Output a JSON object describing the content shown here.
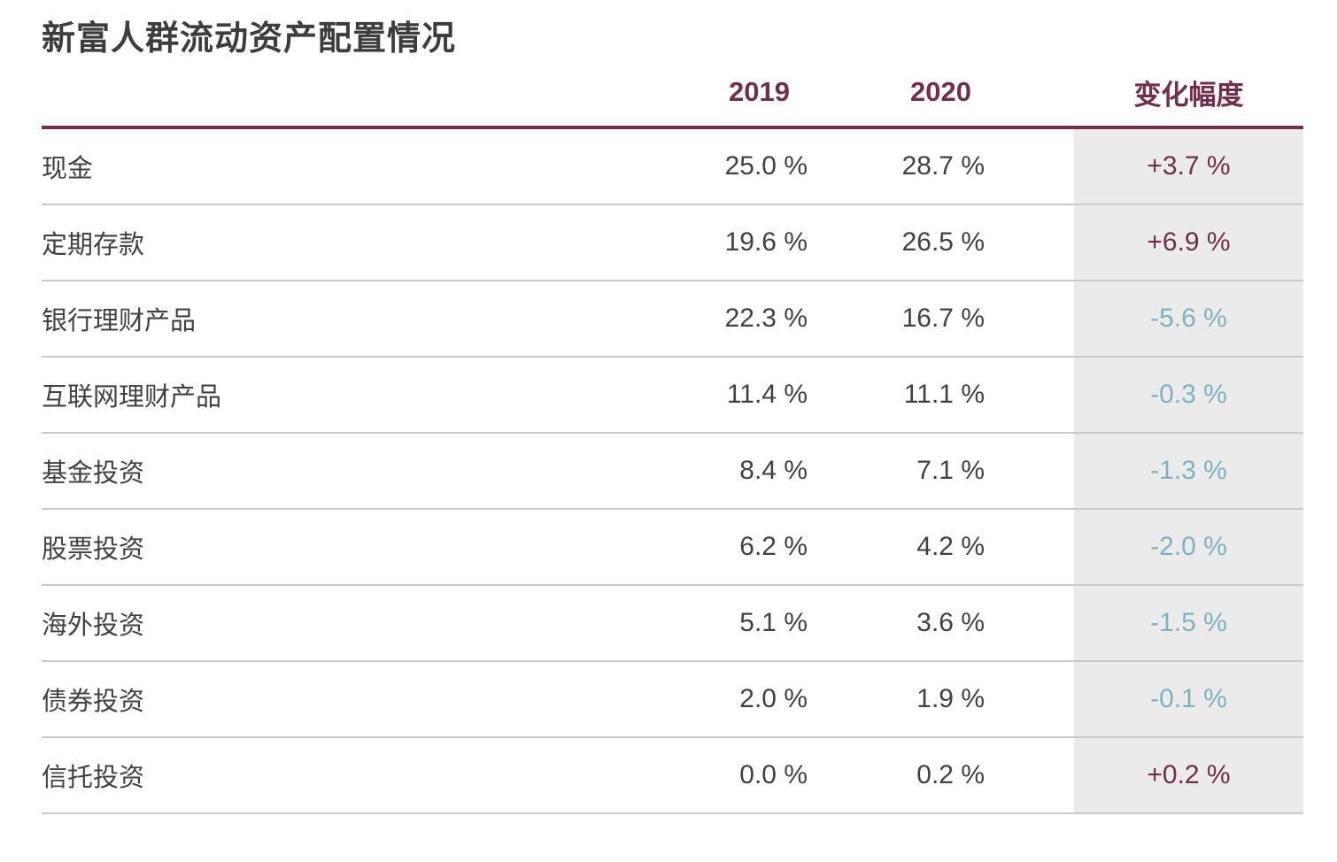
{
  "title": "新富人群流动资产配置情况",
  "colors": {
    "accent_maroon": "#6f2f4d",
    "negative_blue": "#7fb2be",
    "text_dark": "#414141",
    "panel_gray": "#ebebeb",
    "separator_gray": "#cbcbcb",
    "background": "#ffffff"
  },
  "table": {
    "columns": [
      "2019",
      "2020",
      "变化幅度"
    ],
    "rows": [
      {
        "label": "现金",
        "v2019": "25.0 %",
        "v2020": "28.7 %",
        "change": "+3.7 %"
      },
      {
        "label": "定期存款",
        "v2019": "19.6 %",
        "v2020": "26.5 %",
        "change": "+6.9 %"
      },
      {
        "label": "银行理财产品",
        "v2019": "22.3 %",
        "v2020": "16.7 %",
        "change": "-5.6 %"
      },
      {
        "label": "互联网理财产品",
        "v2019": "11.4 %",
        "v2020": "11.1 %",
        "change": "-0.3 %"
      },
      {
        "label": "基金投资",
        "v2019": "8.4 %",
        "v2020": "7.1 %",
        "change": "-1.3 %"
      },
      {
        "label": "股票投资",
        "v2019": "6.2 %",
        "v2020": "4.2 %",
        "change": "-2.0 %"
      },
      {
        "label": "海外投资",
        "v2019": "5.1 %",
        "v2020": "3.6 %",
        "change": "-1.5 %"
      },
      {
        "label": "债券投资",
        "v2019": "2.0 %",
        "v2020": "1.9 %",
        "change": "-0.1 %"
      },
      {
        "label": "信托投资",
        "v2019": "0.0 %",
        "v2020": "0.2 %",
        "change": "+0.2 %"
      }
    ]
  },
  "chart_data": {
    "type": "table",
    "title": "新富人群流动资产配置情况",
    "categories": [
      "现金",
      "定期存款",
      "银行理财产品",
      "互联网理财产品",
      "基金投资",
      "股票投资",
      "海外投资",
      "债券投资",
      "信托投资"
    ],
    "series": [
      {
        "name": "2019",
        "values": [
          25.0,
          19.6,
          22.3,
          11.4,
          8.4,
          6.2,
          5.1,
          2.0,
          0.0
        ]
      },
      {
        "name": "2020",
        "values": [
          28.7,
          26.5,
          16.7,
          11.1,
          7.1,
          4.2,
          3.6,
          1.9,
          0.2
        ]
      },
      {
        "name": "变化幅度",
        "values": [
          3.7,
          6.9,
          -5.6,
          -0.3,
          -1.3,
          -2.0,
          -1.5,
          -0.1,
          0.2
        ]
      }
    ],
    "unit": "%",
    "layout_hints": {
      "change_positive_color": "#6f2f4d",
      "change_negative_color": "#7fb2be",
      "change_column_background": "#ebebeb",
      "header_rule_color": "#6f2f4d"
    }
  }
}
